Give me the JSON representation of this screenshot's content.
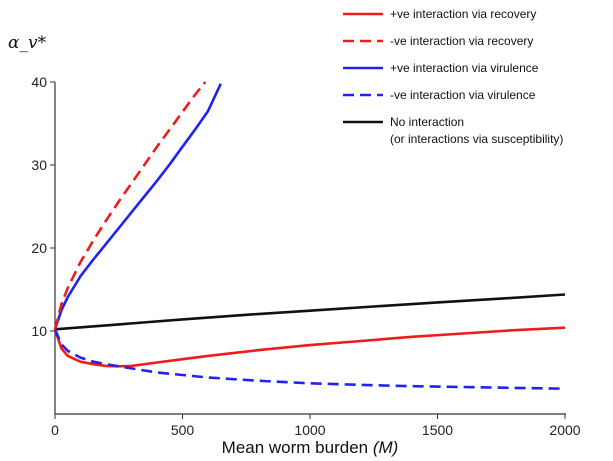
{
  "chart_data": {
    "type": "line",
    "title": "",
    "ylabel": "α_v*",
    "xlabel_prefix": "Mean worm burden ",
    "xlabel_var": "(M)",
    "xlim": [
      0,
      2000
    ],
    "ylim": [
      0,
      40
    ],
    "xticks": [
      0,
      500,
      1000,
      1500,
      2000
    ],
    "yticks": [
      10,
      20,
      30,
      40
    ],
    "tick_labels_x": [
      "0",
      "500",
      "1000",
      "1500",
      "2000"
    ],
    "tick_labels_y": [
      "10",
      "20",
      "30",
      "40"
    ],
    "grid": false,
    "legend_position": "top-right",
    "series": [
      {
        "name": "+ve interaction via recovery",
        "color": "#ee1c1c",
        "dash": "solid",
        "x": [
          0,
          25,
          50,
          100,
          150,
          200,
          250,
          300,
          400,
          500,
          600,
          800,
          1000,
          1200,
          1400,
          1600,
          1800,
          2000
        ],
        "y": [
          10.2,
          7.9,
          7.0,
          6.3,
          6.0,
          5.8,
          5.75,
          5.8,
          6.2,
          6.6,
          7.0,
          7.7,
          8.3,
          8.8,
          9.3,
          9.7,
          10.1,
          10.4
        ]
      },
      {
        "name": "-ve interaction via recovery",
        "color": "#ee1c1c",
        "dash": "dashed",
        "x": [
          0,
          25,
          50,
          100,
          150,
          200,
          250,
          300,
          350,
          400,
          450,
          500,
          550,
          590
        ],
        "y": [
          10.2,
          13.2,
          15.2,
          18.3,
          20.9,
          23.3,
          25.6,
          27.8,
          30.0,
          32.2,
          34.3,
          36.4,
          38.5,
          40.0
        ]
      },
      {
        "name": "+ve interaction via virulence",
        "color": "#2222ee",
        "dash": "solid",
        "x": [
          0,
          25,
          50,
          100,
          150,
          200,
          250,
          300,
          350,
          400,
          450,
          500,
          550,
          600,
          650
        ],
        "y": [
          10.2,
          12.5,
          14.1,
          16.6,
          18.6,
          20.5,
          22.4,
          24.3,
          26.2,
          28.1,
          30.1,
          32.2,
          34.3,
          36.5,
          39.8
        ]
      },
      {
        "name": "-ve interaction via virulence",
        "color": "#2222ee",
        "dash": "dashed",
        "x": [
          0,
          25,
          50,
          100,
          150,
          200,
          300,
          400,
          500,
          600,
          800,
          1000,
          1200,
          1400,
          1600,
          1800,
          2000
        ],
        "y": [
          10.2,
          8.4,
          7.6,
          6.8,
          6.3,
          6.0,
          5.5,
          5.0,
          4.7,
          4.4,
          4.0,
          3.7,
          3.5,
          3.35,
          3.25,
          3.15,
          3.05
        ]
      },
      {
        "name": "No interaction",
        "name_line2": "(or interactions via susceptibility)",
        "color": "#111111",
        "dash": "solid",
        "x": [
          0,
          250,
          500,
          750,
          1000,
          1250,
          1500,
          1750,
          2000
        ],
        "y": [
          10.2,
          10.8,
          11.4,
          11.95,
          12.45,
          12.95,
          13.45,
          13.9,
          14.4
        ]
      }
    ]
  }
}
